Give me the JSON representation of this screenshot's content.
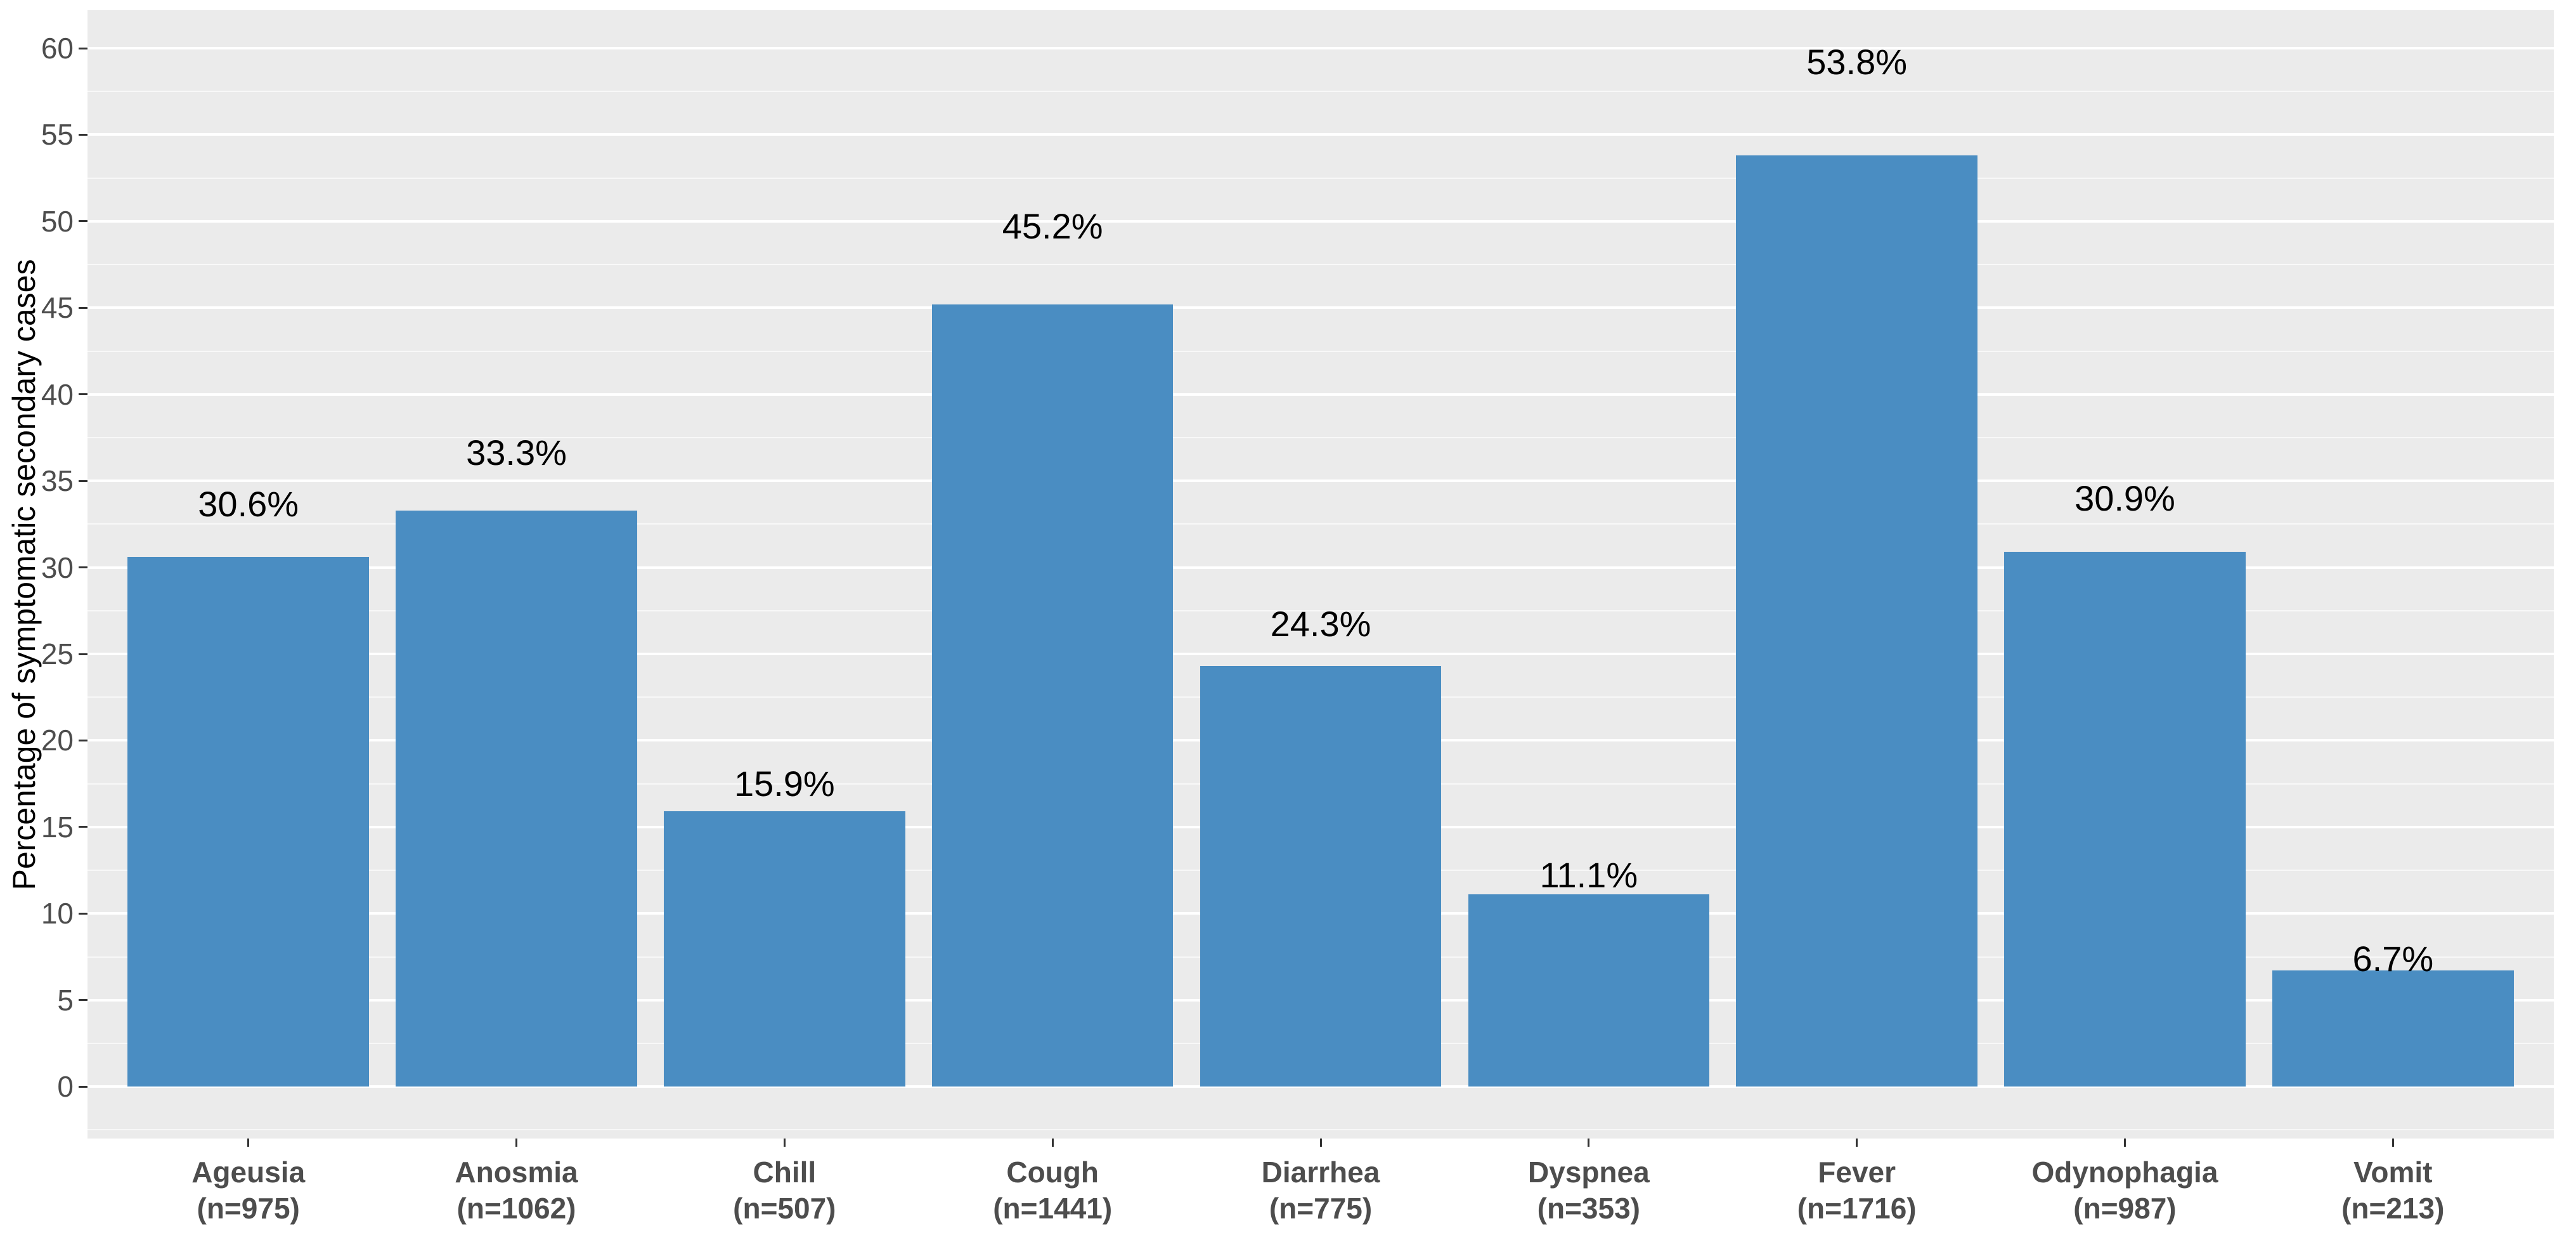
{
  "chart_data": {
    "type": "bar",
    "title": "",
    "xlabel": "",
    "ylabel": "Percentage of symptomatic secondary cases",
    "categories": [
      "Ageusia",
      "Anosmia",
      "Chill",
      "Cough",
      "Diarrhea",
      "Dyspnea",
      "Fever",
      "Odynophagia",
      "Vomit"
    ],
    "sample_sizes": [
      975,
      1062,
      507,
      1441,
      775,
      353,
      1716,
      987,
      213
    ],
    "x_tick_line2_format": "(n={n})",
    "values": [
      30.6,
      33.3,
      15.9,
      45.2,
      24.3,
      11.1,
      53.8,
      30.9,
      6.7
    ],
    "value_labels": [
      "30.6%",
      "33.3%",
      "15.9%",
      "45.2%",
      "24.3%",
      "11.1%",
      "53.8%",
      "30.9%",
      "6.7%"
    ],
    "y_ticks": [
      0,
      5,
      10,
      15,
      20,
      25,
      30,
      35,
      40,
      45,
      50,
      55,
      60
    ],
    "y_minor_ticks": [
      -2.5,
      2.5,
      7.5,
      12.5,
      17.5,
      22.5,
      27.5,
      32.5,
      37.5,
      42.5,
      47.5,
      52.5,
      57.5
    ],
    "ylim": [
      0,
      60
    ],
    "y_display_range": [
      -3,
      62.2
    ],
    "value_label_y_factor": 1.1,
    "bar_width_fraction": 0.9,
    "legend": "none",
    "grid": {
      "major": true,
      "minor": true
    },
    "colors": {
      "bar_fill": "#4A8DC2",
      "panel_background": "#EBEBEB",
      "grid_major": "#FFFFFF",
      "grid_minor": "rgba(255,255,255,0.65)",
      "axis_text": "#4D4D4D",
      "axis_title": "#000000",
      "value_label": "#000000",
      "tick_mark": "#333333",
      "figure_background": "#FFFFFF"
    }
  }
}
